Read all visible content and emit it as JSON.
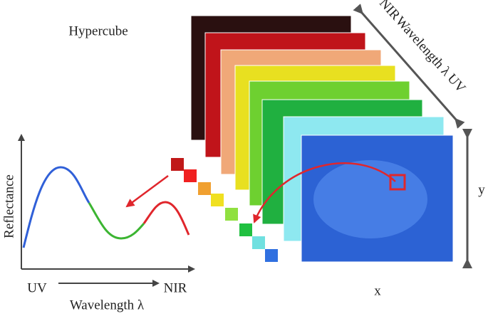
{
  "title": "Hypercube",
  "plot": {
    "y_label": "Reflectance",
    "x_start": "UV",
    "x_end": "NIR",
    "x_label": "Wavelength λ"
  },
  "cube": {
    "axis_label": "Wavelength λ",
    "axis_start": "UV",
    "axis_end": "NIR",
    "x_label": "x",
    "y_label": "y"
  }
}
